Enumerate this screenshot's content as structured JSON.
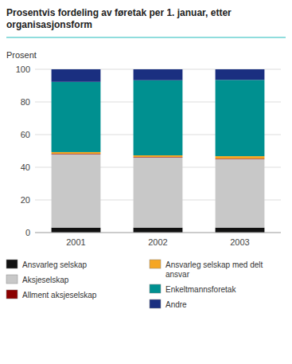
{
  "chart_data": {
    "type": "bar",
    "stacked": true,
    "title": "Prosentvis fordeling av føretak per 1. januar, etter\norganisasjonsform",
    "ylabel": "Prosent",
    "categories": [
      "2001",
      "2002",
      "2003"
    ],
    "series": [
      {
        "name": "Ansvarleg selskap",
        "color": "#111111",
        "values": [
          3.0,
          3.0,
          3.0
        ]
      },
      {
        "name": "Aksjeselskap",
        "color": "#c8c8c8",
        "values": [
          45.0,
          43.0,
          42.0
        ]
      },
      {
        "name": "Allment aksjeselskap",
        "color": "#8b0000",
        "values": [
          0.3,
          0.3,
          0.3
        ]
      },
      {
        "name": "Ansvarleg selskap med delt\nansvar",
        "color": "#f5a623",
        "values": [
          1.0,
          1.0,
          1.5
        ]
      },
      {
        "name": "Enkeltmannsforetak",
        "color": "#009090",
        "values": [
          43.0,
          46.0,
          46.7
        ]
      },
      {
        "name": "Andre",
        "color": "#1a2f80",
        "values": [
          7.7,
          6.7,
          6.5
        ]
      }
    ],
    "ylim": [
      0,
      100
    ],
    "yticks": [
      0,
      20,
      40,
      60,
      80,
      100
    ],
    "grid": true,
    "legend": "bottom"
  }
}
